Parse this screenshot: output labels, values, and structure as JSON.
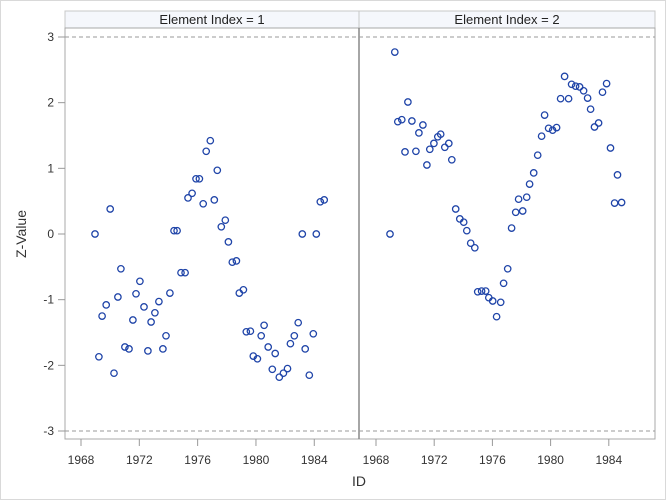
{
  "chart_data": {
    "type": "scatter",
    "title": "",
    "xlabel": "ID",
    "ylabel": "Z-Value",
    "ylim": [
      -3.05,
      3.1
    ],
    "xlim": [
      1966.9,
      1987.0
    ],
    "y_ticks": [
      3,
      2,
      1,
      0,
      -1,
      -2,
      -3
    ],
    "x_ticks": [
      1968,
      1972,
      1976,
      1980,
      1984
    ],
    "reference_lines": [
      3,
      -3
    ],
    "grid": false,
    "marker": "open-circle",
    "marker_color": "#1f44a8",
    "panels": [
      {
        "label": "Element Index = 1",
        "x": [
          1968.96,
          1969.23,
          1969.45,
          1969.73,
          1970.0,
          1970.26,
          1970.53,
          1970.74,
          1971.01,
          1971.29,
          1971.56,
          1971.77,
          1972.04,
          1972.32,
          1972.59,
          1972.81,
          1973.07,
          1973.34,
          1973.62,
          1973.83,
          1974.1,
          1974.38,
          1974.59,
          1974.86,
          1975.14,
          1975.34,
          1975.62,
          1975.89,
          1976.12,
          1976.38,
          1976.59,
          1976.87,
          1977.14,
          1977.35,
          1977.62,
          1977.9,
          1978.11,
          1978.38,
          1978.66,
          1978.86,
          1979.14,
          1979.34,
          1979.62,
          1979.82,
          1980.1,
          1980.36,
          1980.56,
          1980.84,
          1981.12,
          1981.32,
          1981.6,
          1981.88,
          1982.16,
          1982.36,
          1982.63,
          1982.9,
          1983.18,
          1983.38,
          1983.66,
          1983.93,
          1984.14,
          1984.41,
          1984.68
        ],
        "y": [
          0.0,
          -1.87,
          -1.25,
          -1.08,
          0.38,
          -2.12,
          -0.96,
          -0.53,
          -1.72,
          -1.75,
          -1.31,
          -0.91,
          -0.72,
          -1.11,
          -1.78,
          -1.34,
          -1.2,
          -1.03,
          -1.75,
          -1.55,
          -0.9,
          0.05,
          0.05,
          -0.59,
          -0.59,
          0.55,
          0.62,
          0.84,
          0.84,
          0.46,
          1.26,
          1.42,
          0.52,
          0.97,
          0.11,
          0.21,
          -0.12,
          -0.43,
          -0.41,
          -0.9,
          -0.85,
          -1.49,
          -1.48,
          -1.86,
          -1.9,
          -1.55,
          -1.39,
          -1.72,
          -2.06,
          -1.82,
          -2.18,
          -2.12,
          -2.05,
          -1.67,
          -1.55,
          -1.35,
          0.0,
          -1.75,
          -2.15,
          -1.52,
          0.0,
          0.49,
          0.52
        ]
      },
      {
        "label": "Element Index = 2",
        "x": [
          1968.96,
          1969.29,
          1969.5,
          1969.77,
          1969.99,
          1970.19,
          1970.47,
          1970.74,
          1970.95,
          1971.22,
          1971.5,
          1971.7,
          1971.98,
          1972.25,
          1972.45,
          1972.73,
          1973.0,
          1973.21,
          1973.48,
          1973.76,
          1974.03,
          1974.24,
          1974.51,
          1974.79,
          1974.99,
          1975.26,
          1975.54,
          1975.75,
          1976.02,
          1976.29,
          1976.57,
          1976.77,
          1977.05,
          1977.32,
          1977.6,
          1977.8,
          1978.08,
          1978.36,
          1978.56,
          1978.84,
          1979.11,
          1979.38,
          1979.59,
          1979.86,
          1980.14,
          1980.41,
          1980.69,
          1980.96,
          1981.24,
          1981.44,
          1981.72,
          1981.99,
          1982.27,
          1982.54,
          1982.75,
          1983.02,
          1983.3,
          1983.57,
          1983.85,
          1984.12,
          1984.4,
          1984.6,
          1984.88
        ],
        "y": [
          0.0,
          2.77,
          1.71,
          1.74,
          1.25,
          2.01,
          1.72,
          1.26,
          1.54,
          1.66,
          1.05,
          1.29,
          1.38,
          1.48,
          1.52,
          1.32,
          1.38,
          1.13,
          0.38,
          0.23,
          0.18,
          0.05,
          -0.14,
          -0.21,
          -0.88,
          -0.87,
          -0.87,
          -0.97,
          -1.02,
          -1.26,
          -1.04,
          -0.75,
          -0.53,
          0.09,
          0.33,
          0.53,
          0.35,
          0.56,
          0.76,
          0.93,
          1.2,
          1.49,
          1.81,
          1.61,
          1.58,
          1.62,
          2.06,
          2.4,
          2.06,
          2.28,
          2.25,
          2.24,
          2.18,
          2.07,
          1.9,
          1.63,
          1.69,
          2.16,
          2.29,
          1.31,
          0.47,
          0.9,
          0.48
        ]
      }
    ]
  }
}
